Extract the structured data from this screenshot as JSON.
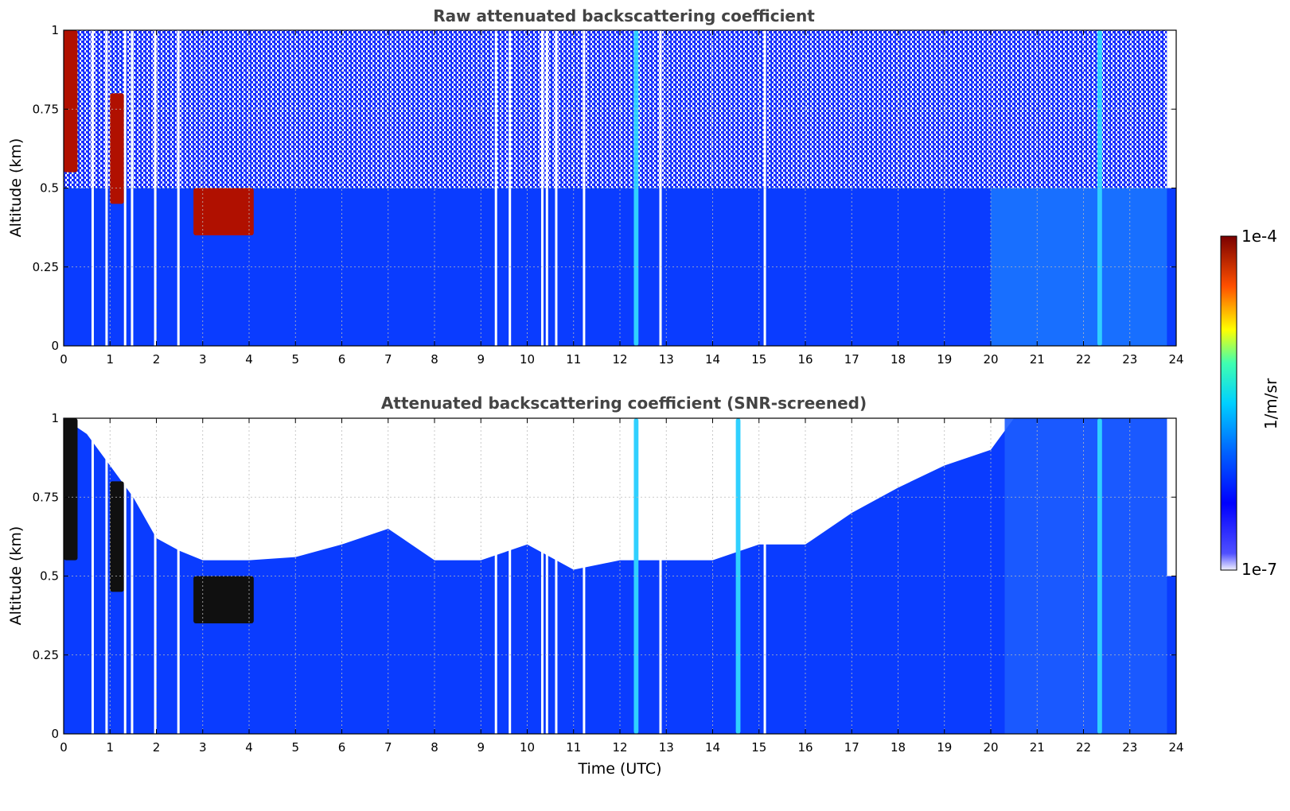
{
  "chart_data": [
    {
      "type": "heatmap",
      "title": "Raw attenuated backscattering coefficient",
      "xlabel": "",
      "ylabel": "Altitude (km)",
      "xlim": [
        0,
        24
      ],
      "ylim": [
        0,
        1
      ],
      "xticks": [
        "0",
        "1",
        "2",
        "3",
        "4",
        "5",
        "6",
        "7",
        "8",
        "9",
        "10",
        "11",
        "12",
        "13",
        "14",
        "15",
        "16",
        "17",
        "18",
        "19",
        "20",
        "21",
        "22",
        "23",
        "24"
      ],
      "yticks": [
        {
          "value": 0,
          "label": "0"
        },
        {
          "value": 0.25,
          "label": "0.25"
        },
        {
          "value": 0.5,
          "label": "0.5"
        },
        {
          "value": 0.75,
          "label": "0.75"
        },
        {
          "value": 1,
          "label": "1"
        }
      ],
      "grid": true,
      "colormap": "jet",
      "features": [
        {
          "t0": 0,
          "t1": 0.3,
          "z0": 0.55,
          "z1": 1.0,
          "level": "high"
        },
        {
          "t0": 1.0,
          "t1": 1.3,
          "z0": 0.45,
          "z1": 0.8,
          "level": "high"
        },
        {
          "t0": 2.8,
          "t1": 4.1,
          "z0": 0.35,
          "z1": 0.5,
          "level": "high"
        },
        {
          "t0": 12.3,
          "t1": 12.4,
          "z0": 0.0,
          "z1": 1.0,
          "level": "medium"
        },
        {
          "t0": 22.3,
          "t1": 22.4,
          "z0": 0.0,
          "z1": 1.0,
          "level": "medium"
        }
      ],
      "data_gaps_hours": [
        0.6,
        0.9,
        1.3,
        1.45,
        1.95,
        2.45,
        9.3,
        9.6,
        10.3,
        10.4,
        10.6,
        11.2,
        12.85,
        15.1
      ]
    },
    {
      "type": "heatmap",
      "title": "Attenuated backscattering coefficient (SNR-screened)",
      "xlabel": "Time (UTC)",
      "ylabel": "Altitude (km)",
      "xlim": [
        0,
        24
      ],
      "ylim": [
        0,
        1
      ],
      "xticks": [
        "0",
        "1",
        "2",
        "3",
        "4",
        "5",
        "6",
        "7",
        "8",
        "9",
        "10",
        "11",
        "12",
        "13",
        "14",
        "15",
        "16",
        "17",
        "18",
        "19",
        "20",
        "21",
        "22",
        "23",
        "24"
      ],
      "yticks": [
        {
          "value": 0,
          "label": "0"
        },
        {
          "value": 0.25,
          "label": "0.25"
        },
        {
          "value": 0.5,
          "label": "0.5"
        },
        {
          "value": 0.75,
          "label": "0.75"
        },
        {
          "value": 1,
          "label": "1"
        }
      ],
      "grid": true,
      "colormap": "jet",
      "screened_top_km": [
        [
          0,
          1.0
        ],
        [
          0.5,
          0.95
        ],
        [
          1,
          0.85
        ],
        [
          1.5,
          0.75
        ],
        [
          2,
          0.62
        ],
        [
          2.5,
          0.58
        ],
        [
          3,
          0.55
        ],
        [
          4,
          0.55
        ],
        [
          5,
          0.56
        ],
        [
          6,
          0.6
        ],
        [
          7,
          0.65
        ],
        [
          8,
          0.55
        ],
        [
          9,
          0.55
        ],
        [
          10,
          0.6
        ],
        [
          11,
          0.52
        ],
        [
          12,
          0.55
        ],
        [
          13,
          0.55
        ],
        [
          14,
          0.55
        ],
        [
          15,
          0.6
        ],
        [
          16,
          0.6
        ],
        [
          17,
          0.7
        ],
        [
          18,
          0.78
        ],
        [
          19,
          0.85
        ],
        [
          20,
          0.9
        ],
        [
          20.5,
          1.0
        ],
        [
          24,
          1.0
        ]
      ],
      "features": [
        {
          "t0": 0,
          "t1": 0.3,
          "z0": 0.55,
          "z1": 1.0,
          "level": "saturated"
        },
        {
          "t0": 1.0,
          "t1": 1.3,
          "z0": 0.45,
          "z1": 0.8,
          "level": "saturated"
        },
        {
          "t0": 2.8,
          "t1": 4.1,
          "z0": 0.35,
          "z1": 0.5,
          "level": "saturated"
        },
        {
          "t0": 12.3,
          "t1": 12.4,
          "z0": 0.0,
          "z1": 1.0,
          "level": "medium"
        },
        {
          "t0": 14.5,
          "t1": 14.6,
          "z0": 0.0,
          "z1": 1.0,
          "level": "medium"
        },
        {
          "t0": 22.3,
          "t1": 22.4,
          "z0": 0.0,
          "z1": 1.0,
          "level": "medium"
        }
      ],
      "data_gaps_hours": [
        0.6,
        0.9,
        1.3,
        1.45,
        1.95,
        2.45,
        9.3,
        9.6,
        10.3,
        10.4,
        10.6,
        11.2,
        12.85,
        15.1
      ]
    }
  ],
  "colorbar": {
    "label": "1/m/sr",
    "max_label": "1e-4",
    "min_label": "1e-7",
    "scale": "log",
    "stops": [
      "#ffffff",
      "#0000ff",
      "#00c0ff",
      "#40ffc0",
      "#ffff00",
      "#ff6000",
      "#800000"
    ]
  }
}
